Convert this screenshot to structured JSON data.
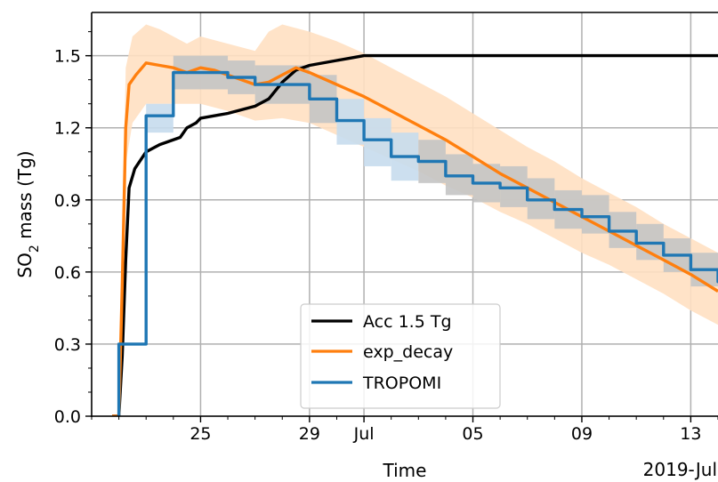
{
  "chart_data": {
    "type": "line",
    "xlabel": "Time",
    "ylabel_main": "SO",
    "ylabel_sub": "2",
    "ylabel_rest": " mass (Tg)",
    "x_offset_label": "2019-Jul",
    "xlim": [
      "2019-06-21",
      "2019-07-14"
    ],
    "ylim": [
      0,
      1.68
    ],
    "grid": true,
    "legend_position": "lower-center",
    "x_ticks": [
      {
        "date": "2019-06-25",
        "label": "25"
      },
      {
        "date": "2019-06-29",
        "label": "29"
      },
      {
        "date": "2019-07-01",
        "label": "Jul"
      },
      {
        "date": "2019-07-05",
        "label": "05"
      },
      {
        "date": "2019-07-09",
        "label": "09"
      },
      {
        "date": "2019-07-13",
        "label": "13"
      }
    ],
    "y_ticks": [
      {
        "value": 0.0,
        "label": "0.0"
      },
      {
        "value": 0.3,
        "label": "0.3"
      },
      {
        "value": 0.6,
        "label": "0.6"
      },
      {
        "value": 0.9,
        "label": "0.9"
      },
      {
        "value": 1.2,
        "label": "1.2"
      },
      {
        "value": 1.5,
        "label": "1.5"
      }
    ],
    "series": [
      {
        "name": "Acc 1.5 Tg",
        "color": "#000000",
        "style": "line",
        "points": [
          [
            "2019-06-21 18:00",
            0.0
          ],
          [
            "2019-06-22 00:00",
            0.0
          ],
          [
            "2019-06-22 03:00",
            0.25
          ],
          [
            "2019-06-22 06:00",
            0.65
          ],
          [
            "2019-06-22 09:00",
            0.95
          ],
          [
            "2019-06-22 14:00",
            1.03
          ],
          [
            "2019-06-23 00:00",
            1.1
          ],
          [
            "2019-06-23 12:00",
            1.13
          ],
          [
            "2019-06-24 06:00",
            1.16
          ],
          [
            "2019-06-24 12:00",
            1.2
          ],
          [
            "2019-06-24 20:00",
            1.22
          ],
          [
            "2019-06-25 00:00",
            1.24
          ],
          [
            "2019-06-26 00:00",
            1.26
          ],
          [
            "2019-06-27 00:00",
            1.29
          ],
          [
            "2019-06-27 12:00",
            1.32
          ],
          [
            "2019-06-28 00:00",
            1.39
          ],
          [
            "2019-06-28 12:00",
            1.44
          ],
          [
            "2019-06-29 00:00",
            1.46
          ],
          [
            "2019-06-30 00:00",
            1.48
          ],
          [
            "2019-06-30 12:00",
            1.49
          ],
          [
            "2019-07-01 00:00",
            1.5
          ],
          [
            "2019-07-14 00:00",
            1.5
          ]
        ]
      },
      {
        "name": "exp_decay",
        "color": "#ff7f0e",
        "style": "line",
        "points": [
          [
            "2019-06-21 18:00",
            0.0
          ],
          [
            "2019-06-22 00:00",
            0.0
          ],
          [
            "2019-06-22 03:00",
            0.55
          ],
          [
            "2019-06-22 06:00",
            1.2
          ],
          [
            "2019-06-22 09:00",
            1.38
          ],
          [
            "2019-06-22 15:00",
            1.42
          ],
          [
            "2019-06-23 00:00",
            1.47
          ],
          [
            "2019-06-23 12:00",
            1.46
          ],
          [
            "2019-06-24 00:00",
            1.45
          ],
          [
            "2019-06-24 12:00",
            1.43
          ],
          [
            "2019-06-25 00:00",
            1.45
          ],
          [
            "2019-06-25 12:00",
            1.44
          ],
          [
            "2019-06-26 00:00",
            1.42
          ],
          [
            "2019-06-26 12:00",
            1.4
          ],
          [
            "2019-06-27 00:00",
            1.38
          ],
          [
            "2019-06-27 12:00",
            1.39
          ],
          [
            "2019-06-28 00:00",
            1.42
          ],
          [
            "2019-06-28 12:00",
            1.45
          ],
          [
            "2019-06-29 00:00",
            1.43
          ],
          [
            "2019-06-30 00:00",
            1.38
          ],
          [
            "2019-07-01 00:00",
            1.33
          ],
          [
            "2019-07-02 00:00",
            1.27
          ],
          [
            "2019-07-03 00:00",
            1.21
          ],
          [
            "2019-07-04 00:00",
            1.15
          ],
          [
            "2019-07-05 00:00",
            1.08
          ],
          [
            "2019-07-06 00:00",
            1.01
          ],
          [
            "2019-07-07 00:00",
            0.95
          ],
          [
            "2019-07-08 00:00",
            0.89
          ],
          [
            "2019-07-09 00:00",
            0.83
          ],
          [
            "2019-07-10 00:00",
            0.77
          ],
          [
            "2019-07-11 00:00",
            0.71
          ],
          [
            "2019-07-12 00:00",
            0.65
          ],
          [
            "2019-07-13 00:00",
            0.59
          ],
          [
            "2019-07-14 00:00",
            0.52
          ]
        ]
      },
      {
        "name": "TROPOMI",
        "color": "#1f77b4",
        "style": "step",
        "steps": [
          [
            "2019-06-22 00:00",
            0.3
          ],
          [
            "2019-06-23 00:00",
            1.25
          ],
          [
            "2019-06-24 00:00",
            1.43
          ],
          [
            "2019-06-26 00:00",
            1.41
          ],
          [
            "2019-06-27 00:00",
            1.38
          ],
          [
            "2019-06-29 00:00",
            1.32
          ],
          [
            "2019-06-30 00:00",
            1.23
          ],
          [
            "2019-07-01 00:00",
            1.15
          ],
          [
            "2019-07-02 00:00",
            1.08
          ],
          [
            "2019-07-03 00:00",
            1.06
          ],
          [
            "2019-07-04 00:00",
            1.0
          ],
          [
            "2019-07-05 00:00",
            0.97
          ],
          [
            "2019-07-06 00:00",
            0.95
          ],
          [
            "2019-07-07 00:00",
            0.9
          ],
          [
            "2019-07-08 00:00",
            0.86
          ],
          [
            "2019-07-09 00:00",
            0.83
          ],
          [
            "2019-07-10 00:00",
            0.77
          ],
          [
            "2019-07-11 00:00",
            0.72
          ],
          [
            "2019-07-12 00:00",
            0.67
          ],
          [
            "2019-07-13 00:00",
            0.61
          ],
          [
            "2019-07-14 00:00",
            0.56
          ],
          [
            "2019-07-15 00:00",
            0.5
          ]
        ]
      }
    ],
    "exp_decay_band": {
      "color": "#ffe0c2",
      "upper": [
        [
          "2019-06-21 18:00",
          0.0
        ],
        [
          "2019-06-22 00:00",
          0.0
        ],
        [
          "2019-06-22 03:00",
          0.7
        ],
        [
          "2019-06-22 06:00",
          1.45
        ],
        [
          "2019-06-22 12:00",
          1.58
        ],
        [
          "2019-06-23 00:00",
          1.63
        ],
        [
          "2019-06-23 12:00",
          1.61
        ],
        [
          "2019-06-24 00:00",
          1.58
        ],
        [
          "2019-06-24 12:00",
          1.55
        ],
        [
          "2019-06-25 00:00",
          1.58
        ],
        [
          "2019-06-26 00:00",
          1.55
        ],
        [
          "2019-06-27 00:00",
          1.52
        ],
        [
          "2019-06-27 12:00",
          1.6
        ],
        [
          "2019-06-28 00:00",
          1.63
        ],
        [
          "2019-06-29 00:00",
          1.6
        ],
        [
          "2019-06-30 00:00",
          1.56
        ],
        [
          "2019-07-01 00:00",
          1.51
        ],
        [
          "2019-07-02 00:00",
          1.45
        ],
        [
          "2019-07-03 00:00",
          1.39
        ],
        [
          "2019-07-04 00:00",
          1.33
        ],
        [
          "2019-07-05 00:00",
          1.26
        ],
        [
          "2019-07-06 00:00",
          1.19
        ],
        [
          "2019-07-07 00:00",
          1.12
        ],
        [
          "2019-07-08 00:00",
          1.06
        ],
        [
          "2019-07-09 00:00",
          0.99
        ],
        [
          "2019-07-10 00:00",
          0.93
        ],
        [
          "2019-07-11 00:00",
          0.87
        ],
        [
          "2019-07-12 00:00",
          0.8
        ],
        [
          "2019-07-13 00:00",
          0.74
        ],
        [
          "2019-07-14 00:00",
          0.68
        ]
      ],
      "lower": [
        [
          "2019-06-21 18:00",
          0.0
        ],
        [
          "2019-06-22 00:00",
          0.0
        ],
        [
          "2019-06-22 03:00",
          0.45
        ],
        [
          "2019-06-22 06:00",
          1.05
        ],
        [
          "2019-06-22 12:00",
          1.22
        ],
        [
          "2019-06-23 00:00",
          1.3
        ],
        [
          "2019-06-24 00:00",
          1.3
        ],
        [
          "2019-06-25 00:00",
          1.3
        ],
        [
          "2019-06-26 00:00",
          1.27
        ],
        [
          "2019-06-27 00:00",
          1.23
        ],
        [
          "2019-06-28 00:00",
          1.24
        ],
        [
          "2019-06-29 00:00",
          1.22
        ],
        [
          "2019-06-30 00:00",
          1.17
        ],
        [
          "2019-07-01 00:00",
          1.12
        ],
        [
          "2019-07-02 00:00",
          1.07
        ],
        [
          "2019-07-03 00:00",
          1.02
        ],
        [
          "2019-07-04 00:00",
          0.96
        ],
        [
          "2019-07-05 00:00",
          0.91
        ],
        [
          "2019-07-06 00:00",
          0.85
        ],
        [
          "2019-07-07 00:00",
          0.8
        ],
        [
          "2019-07-08 00:00",
          0.74
        ],
        [
          "2019-07-09 00:00",
          0.68
        ],
        [
          "2019-07-10 00:00",
          0.63
        ],
        [
          "2019-07-11 00:00",
          0.57
        ],
        [
          "2019-07-12 00:00",
          0.51
        ],
        [
          "2019-07-13 00:00",
          0.44
        ],
        [
          "2019-07-14 00:00",
          0.38
        ]
      ]
    },
    "tropomi_uncertainty": {
      "blue_color": "#c7dced",
      "gray_color": "#c4c4c4",
      "boxes": [
        {
          "start": "2019-06-23 00:00",
          "end": "2019-06-24 00:00",
          "lo": 1.18,
          "hi": 1.3,
          "kind": "blue"
        },
        {
          "start": "2019-06-24 00:00",
          "end": "2019-06-26 00:00",
          "lo": 1.36,
          "hi": 1.5,
          "kind": "gray"
        },
        {
          "start": "2019-06-26 00:00",
          "end": "2019-06-27 00:00",
          "lo": 1.34,
          "hi": 1.48,
          "kind": "gray"
        },
        {
          "start": "2019-06-27 00:00",
          "end": "2019-06-29 00:00",
          "lo": 1.3,
          "hi": 1.46,
          "kind": "gray"
        },
        {
          "start": "2019-06-29 00:00",
          "end": "2019-06-30 00:00",
          "lo": 1.22,
          "hi": 1.42,
          "kind": "gray"
        },
        {
          "start": "2019-06-30 00:00",
          "end": "2019-07-01 00:00",
          "lo": 1.13,
          "hi": 1.32,
          "kind": "blue"
        },
        {
          "start": "2019-07-01 00:00",
          "end": "2019-07-02 00:00",
          "lo": 1.04,
          "hi": 1.24,
          "kind": "blue"
        },
        {
          "start": "2019-07-02 00:00",
          "end": "2019-07-03 00:00",
          "lo": 0.98,
          "hi": 1.18,
          "kind": "blue"
        },
        {
          "start": "2019-07-03 00:00",
          "end": "2019-07-04 00:00",
          "lo": 0.97,
          "hi": 1.15,
          "kind": "gray"
        },
        {
          "start": "2019-07-04 00:00",
          "end": "2019-07-05 00:00",
          "lo": 0.92,
          "hi": 1.09,
          "kind": "gray"
        },
        {
          "start": "2019-07-05 00:00",
          "end": "2019-07-06 00:00",
          "lo": 0.89,
          "hi": 1.05,
          "kind": "gray"
        },
        {
          "start": "2019-07-06 00:00",
          "end": "2019-07-07 00:00",
          "lo": 0.87,
          "hi": 1.04,
          "kind": "gray"
        },
        {
          "start": "2019-07-07 00:00",
          "end": "2019-07-08 00:00",
          "lo": 0.82,
          "hi": 0.99,
          "kind": "gray"
        },
        {
          "start": "2019-07-08 00:00",
          "end": "2019-07-09 00:00",
          "lo": 0.78,
          "hi": 0.94,
          "kind": "gray"
        },
        {
          "start": "2019-07-09 00:00",
          "end": "2019-07-10 00:00",
          "lo": 0.76,
          "hi": 0.92,
          "kind": "gray"
        },
        {
          "start": "2019-07-10 00:00",
          "end": "2019-07-11 00:00",
          "lo": 0.7,
          "hi": 0.85,
          "kind": "gray"
        },
        {
          "start": "2019-07-11 00:00",
          "end": "2019-07-12 00:00",
          "lo": 0.65,
          "hi": 0.8,
          "kind": "gray"
        },
        {
          "start": "2019-07-12 00:00",
          "end": "2019-07-13 00:00",
          "lo": 0.6,
          "hi": 0.74,
          "kind": "gray"
        },
        {
          "start": "2019-07-13 00:00",
          "end": "2019-07-14 00:00",
          "lo": 0.54,
          "hi": 0.68,
          "kind": "gray"
        },
        {
          "start": "2019-07-14 00:00",
          "end": "2019-07-15 00:00",
          "lo": 0.49,
          "hi": 0.62,
          "kind": "gray"
        },
        {
          "start": "2019-07-15 00:00",
          "end": "2019-07-16 00:00",
          "lo": 0.43,
          "hi": 0.56,
          "kind": "blue"
        }
      ]
    }
  }
}
